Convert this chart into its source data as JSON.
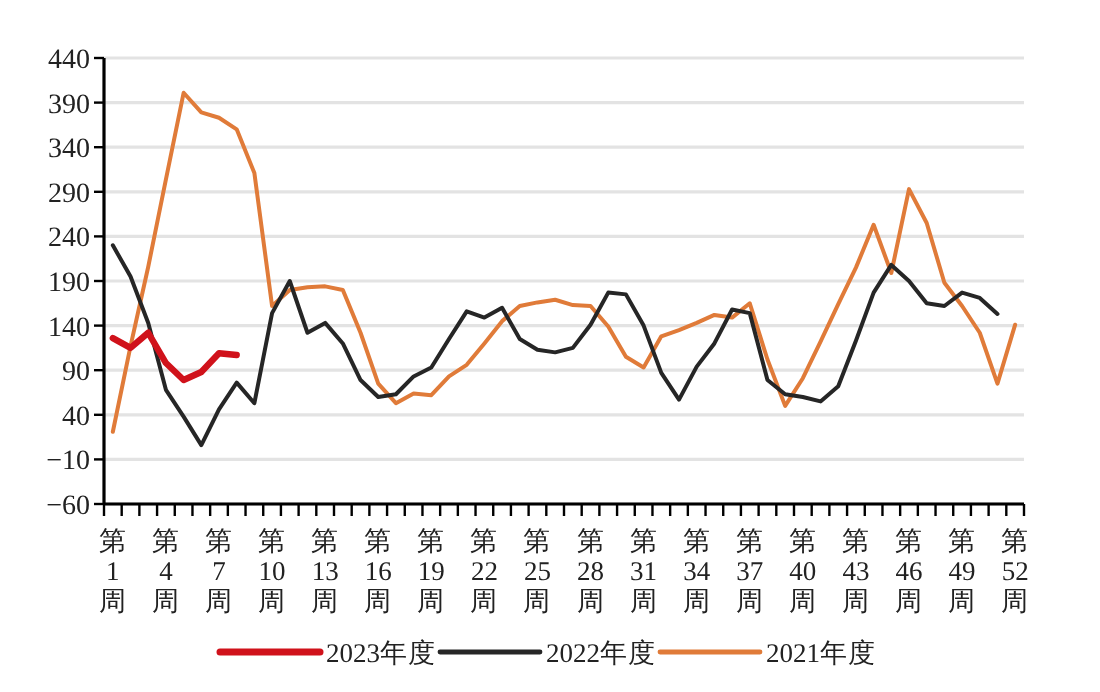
{
  "chart_data": {
    "type": "line",
    "categories": [
      "第1周",
      null,
      null,
      "第4周",
      null,
      null,
      "第7周",
      null,
      null,
      "第10周",
      null,
      null,
      "第13周",
      null,
      null,
      "第16周",
      null,
      null,
      "第19周",
      null,
      null,
      "第22周",
      null,
      null,
      "第25周",
      null,
      null,
      "第28周",
      null,
      null,
      "第31周",
      null,
      null,
      "第34周",
      null,
      null,
      "第37周",
      null,
      null,
      "第40周",
      null,
      null,
      "第43周",
      null,
      null,
      "第46周",
      null,
      null,
      "第49周",
      null,
      null,
      "第52周"
    ],
    "series": [
      {
        "name": "2023年度",
        "color": "#d0121b",
        "values": [
          126,
          115,
          132,
          98,
          79,
          88,
          109,
          107,
          null,
          null,
          null,
          null,
          null,
          null,
          null,
          null,
          null,
          null,
          null,
          null,
          null,
          null,
          null,
          null,
          null,
          null,
          null,
          null,
          null,
          null,
          null,
          null,
          null,
          null,
          null,
          null,
          null,
          null,
          null,
          null,
          null,
          null,
          null,
          null,
          null,
          null,
          null,
          null,
          null,
          null,
          null,
          null
        ]
      },
      {
        "name": "2022年度",
        "color": "#262626",
        "values": [
          230,
          195,
          143,
          68,
          38,
          6,
          46,
          76,
          53,
          154,
          190,
          132,
          143,
          120,
          79,
          60,
          63,
          83,
          93,
          125,
          156,
          149,
          160,
          125,
          113,
          110,
          115,
          141,
          177,
          175,
          140,
          87,
          57,
          94,
          120,
          158,
          154,
          79,
          63,
          60,
          55,
          72,
          123,
          177,
          208,
          190,
          165,
          162,
          177,
          171,
          153,
          null
        ]
      },
      {
        "name": "2021年度",
        "color": "#e07b39",
        "values": [
          21,
          117,
          206,
          304,
          401,
          379,
          373,
          360,
          311,
          162,
          180,
          183,
          184,
          180,
          132,
          75,
          53,
          64,
          62,
          83,
          96,
          120,
          145,
          162,
          166,
          169,
          163,
          162,
          139,
          105,
          93,
          128,
          135,
          143,
          152,
          149,
          165,
          102,
          50,
          81,
          122,
          164,
          205,
          253,
          199,
          293,
          255,
          188,
          162,
          132,
          75,
          141
        ]
      }
    ],
    "ylim": [
      -60,
      440
    ],
    "yticks": [
      -60,
      -10,
      40,
      90,
      140,
      190,
      240,
      290,
      340,
      390,
      440
    ],
    "grid": "y",
    "legend": "bottom"
  }
}
